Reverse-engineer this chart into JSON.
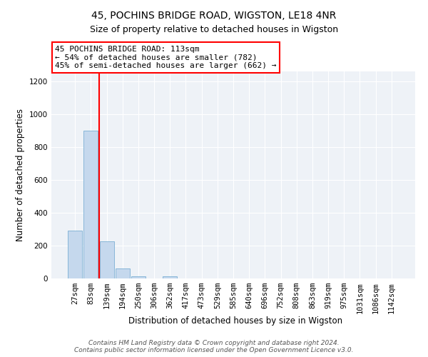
{
  "title": "45, POCHINS BRIDGE ROAD, WIGSTON, LE18 4NR",
  "subtitle": "Size of property relative to detached houses in Wigston",
  "xlabel": "Distribution of detached houses by size in Wigston",
  "ylabel": "Number of detached properties",
  "bar_values": [
    290,
    900,
    225,
    60,
    15,
    0,
    15,
    0,
    0,
    0,
    0,
    0,
    0,
    0,
    0,
    0,
    0,
    0,
    0,
    0,
    0
  ],
  "bar_labels": [
    "27sqm",
    "83sqm",
    "139sqm",
    "194sqm",
    "250sqm",
    "306sqm",
    "362sqm",
    "417sqm",
    "473sqm",
    "529sqm",
    "585sqm",
    "640sqm",
    "696sqm",
    "752sqm",
    "808sqm",
    "863sqm",
    "919sqm",
    "975sqm",
    "1031sqm",
    "1086sqm",
    "1142sqm"
  ],
  "bar_color": "#c5d8ed",
  "bar_edge_color": "#7aafd4",
  "vline_x": 1.53,
  "vline_color": "red",
  "ylim": [
    0,
    1260
  ],
  "yticks": [
    0,
    200,
    400,
    600,
    800,
    1000,
    1200
  ],
  "annotation_text": "45 POCHINS BRIDGE ROAD: 113sqm\n← 54% of detached houses are smaller (782)\n45% of semi-detached houses are larger (662) →",
  "annotation_box_color": "white",
  "annotation_box_edge": "red",
  "footer1": "Contains HM Land Registry data © Crown copyright and database right 2024.",
  "footer2": "Contains public sector information licensed under the Open Government Licence v3.0.",
  "bg_color": "#eef2f7",
  "grid_color": "white",
  "title_fontsize": 10,
  "subtitle_fontsize": 9,
  "axis_label_fontsize": 8.5,
  "tick_fontsize": 7.5,
  "footer_fontsize": 6.5
}
